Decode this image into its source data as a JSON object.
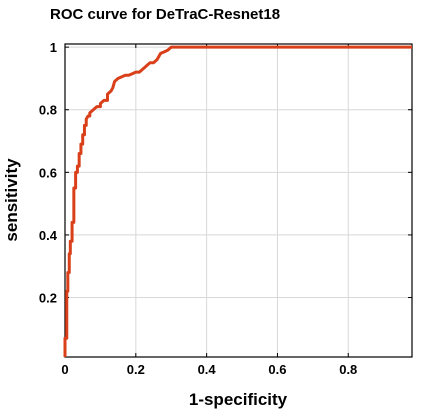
{
  "chart_data": {
    "type": "line",
    "title": "ROC curve for DeTraC-Resnet18",
    "xlabel": "1-specificity",
    "ylabel": "sensitivity",
    "xlim": [
      0,
      0.98
    ],
    "ylim": [
      0.01,
      1.01
    ],
    "xticks": [
      0,
      0.2,
      0.4,
      0.6,
      0.8
    ],
    "xtick_labels": [
      "0",
      "0.2",
      "0.4",
      "0.6",
      "0.8"
    ],
    "yticks": [
      0.2,
      0.4,
      0.6,
      0.8,
      1
    ],
    "ytick_labels": [
      "0.2",
      "0.4",
      "0.6",
      "0.8",
      "1"
    ],
    "grid": true,
    "line_color": "#d9401a",
    "series": [
      {
        "name": "",
        "x": [
          0,
          0,
          0.005,
          0.005,
          0.008,
          0.008,
          0.012,
          0.012,
          0.015,
          0.015,
          0.02,
          0.02,
          0.025,
          0.025,
          0.03,
          0.03,
          0.035,
          0.035,
          0.04,
          0.04,
          0.045,
          0.045,
          0.05,
          0.05,
          0.055,
          0.055,
          0.06,
          0.06,
          0.065,
          0.07,
          0.07,
          0.08,
          0.08,
          0.09,
          0.1,
          0.1,
          0.11,
          0.12,
          0.12,
          0.13,
          0.135,
          0.14,
          0.15,
          0.16,
          0.17,
          0.18,
          0.19,
          0.2,
          0.21,
          0.22,
          0.225,
          0.23,
          0.24,
          0.25,
          0.26,
          0.265,
          0.27,
          0.28,
          0.29,
          0.3,
          0.31,
          0.98
        ],
        "y": [
          0.01,
          0.07,
          0.07,
          0.22,
          0.22,
          0.28,
          0.28,
          0.34,
          0.34,
          0.38,
          0.38,
          0.44,
          0.44,
          0.55,
          0.55,
          0.6,
          0.6,
          0.62,
          0.62,
          0.66,
          0.66,
          0.69,
          0.69,
          0.72,
          0.72,
          0.75,
          0.75,
          0.77,
          0.78,
          0.78,
          0.79,
          0.8,
          0.8,
          0.81,
          0.81,
          0.82,
          0.83,
          0.83,
          0.85,
          0.86,
          0.87,
          0.89,
          0.9,
          0.905,
          0.91,
          0.91,
          0.915,
          0.92,
          0.92,
          0.93,
          0.935,
          0.94,
          0.95,
          0.95,
          0.96,
          0.97,
          0.98,
          0.985,
          0.99,
          1.0,
          1.0,
          1.0
        ]
      }
    ]
  }
}
